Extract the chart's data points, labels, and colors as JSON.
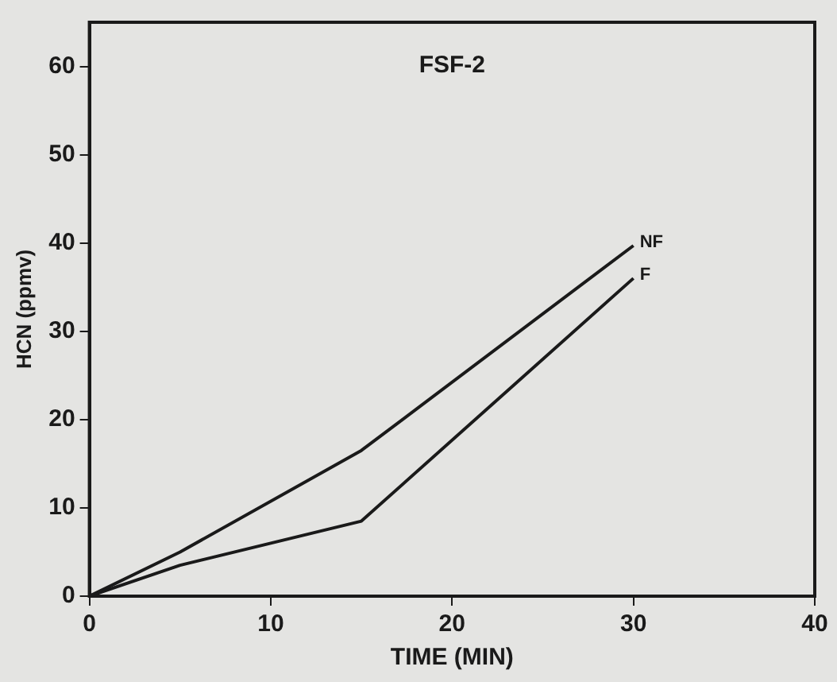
{
  "chart_data": {
    "type": "line",
    "title": "FSF-2",
    "xlabel": "TIME (MIN)",
    "ylabel": "HCN (ppmv)",
    "x": [
      0,
      5,
      15,
      30
    ],
    "series": [
      {
        "name": "NF",
        "color": "#1a1a1a",
        "values": [
          0,
          5,
          16.5,
          39.7
        ]
      },
      {
        "name": "F",
        "color": "#1a1a1a",
        "values": [
          0,
          3.5,
          8.5,
          36
        ]
      }
    ],
    "xlim": [
      0,
      40
    ],
    "xticks": [
      0,
      10,
      20,
      30,
      40
    ],
    "ylim": [
      0,
      65
    ],
    "yticks": [
      0,
      10,
      20,
      30,
      40,
      50,
      60
    ],
    "grid": false,
    "legend": false,
    "marker": "none",
    "line_style": "solid"
  }
}
